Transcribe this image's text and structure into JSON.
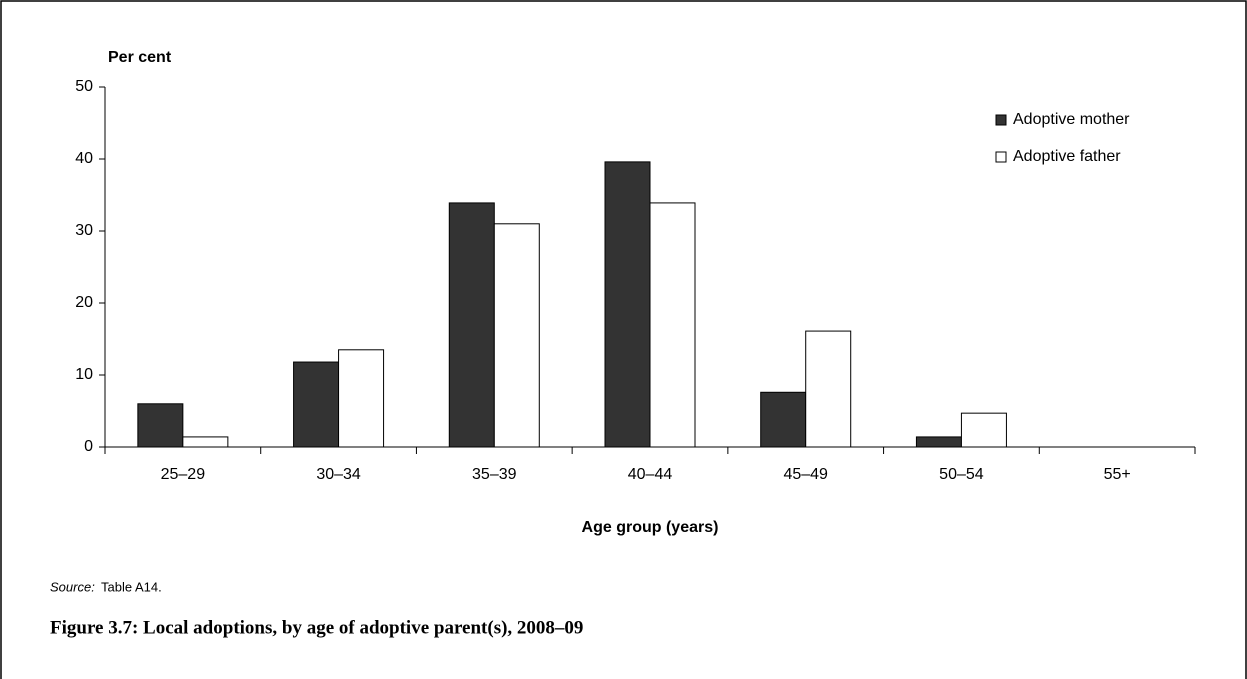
{
  "chart_data": {
    "type": "bar",
    "y_axis_label": "Per cent",
    "x_axis_label": "Age group (years)",
    "source_label": "Source:",
    "source_text": "Table A14.",
    "caption": "Figure 3.7: Local adoptions, by age of adoptive parent(s), 2008–09",
    "categories": [
      "25–29",
      "30–34",
      "35–39",
      "40–44",
      "45–49",
      "50–54",
      "55+"
    ],
    "series": [
      {
        "name": "Adoptive mother",
        "color": "#333333",
        "values": [
          6,
          11.8,
          33.9,
          39.6,
          7.6,
          1.4,
          0
        ]
      },
      {
        "name": "Adoptive father",
        "color": "#ffffff",
        "values": [
          1.4,
          13.5,
          31,
          33.9,
          16.1,
          4.7,
          0
        ]
      }
    ],
    "ylim": [
      0,
      50
    ],
    "yticks": [
      0,
      10,
      20,
      30,
      40,
      50
    ],
    "legend": "top-right"
  }
}
